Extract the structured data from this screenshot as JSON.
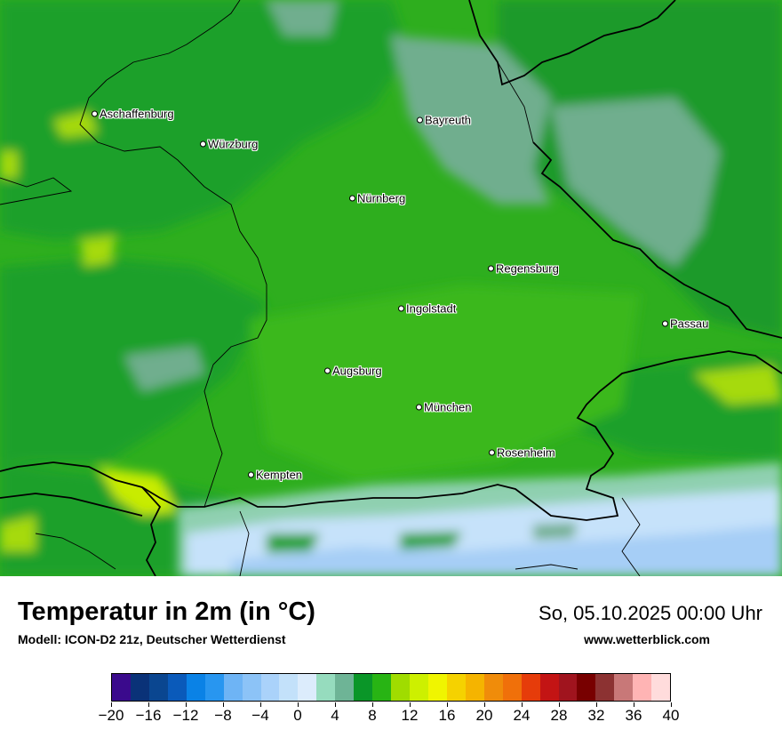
{
  "title": "Temperatur in 2m (in °C)",
  "subtitle": "Modell: ICON-D2 21z, Deutscher Wetterdienst",
  "datetime": "So, 05.10.2025 00:00 Uhr",
  "site": "www.wetterblick.com",
  "cities": [
    {
      "name": "Aschaffenburg"
    },
    {
      "name": "Würzburg"
    },
    {
      "name": "Bayreuth"
    },
    {
      "name": "Nürnberg"
    },
    {
      "name": "Regensburg"
    },
    {
      "name": "Ingolstadt"
    },
    {
      "name": "Passau"
    },
    {
      "name": "Augsburg"
    },
    {
      "name": "München"
    },
    {
      "name": "Rosenheim"
    },
    {
      "name": "Kempten"
    }
  ],
  "legend": {
    "colors": [
      "#3a0a8c",
      "#0a3278",
      "#0a4690",
      "#0a5aba",
      "#0a82e6",
      "#2896f0",
      "#6eb4f5",
      "#8cc3f7",
      "#aad2fa",
      "#c3e1fa",
      "#dcecfc",
      "#96dcbe",
      "#6eb496",
      "#0a9628",
      "#28b414",
      "#a0dc00",
      "#cdf000",
      "#f0f500",
      "#f5d200",
      "#f5b400",
      "#f08c0a",
      "#f0700a",
      "#e63c0a",
      "#c31414",
      "#a0141e",
      "#780000",
      "#8c3232",
      "#c87878",
      "#ffb4b4",
      "#ffdcdc"
    ],
    "tick_labels": [
      "−20",
      "−16",
      "−12",
      "−8",
      "−4",
      "0",
      "4",
      "8",
      "12",
      "16",
      "20",
      "24",
      "28",
      "32",
      "36",
      "40"
    ],
    "min": -20,
    "max": 40
  }
}
